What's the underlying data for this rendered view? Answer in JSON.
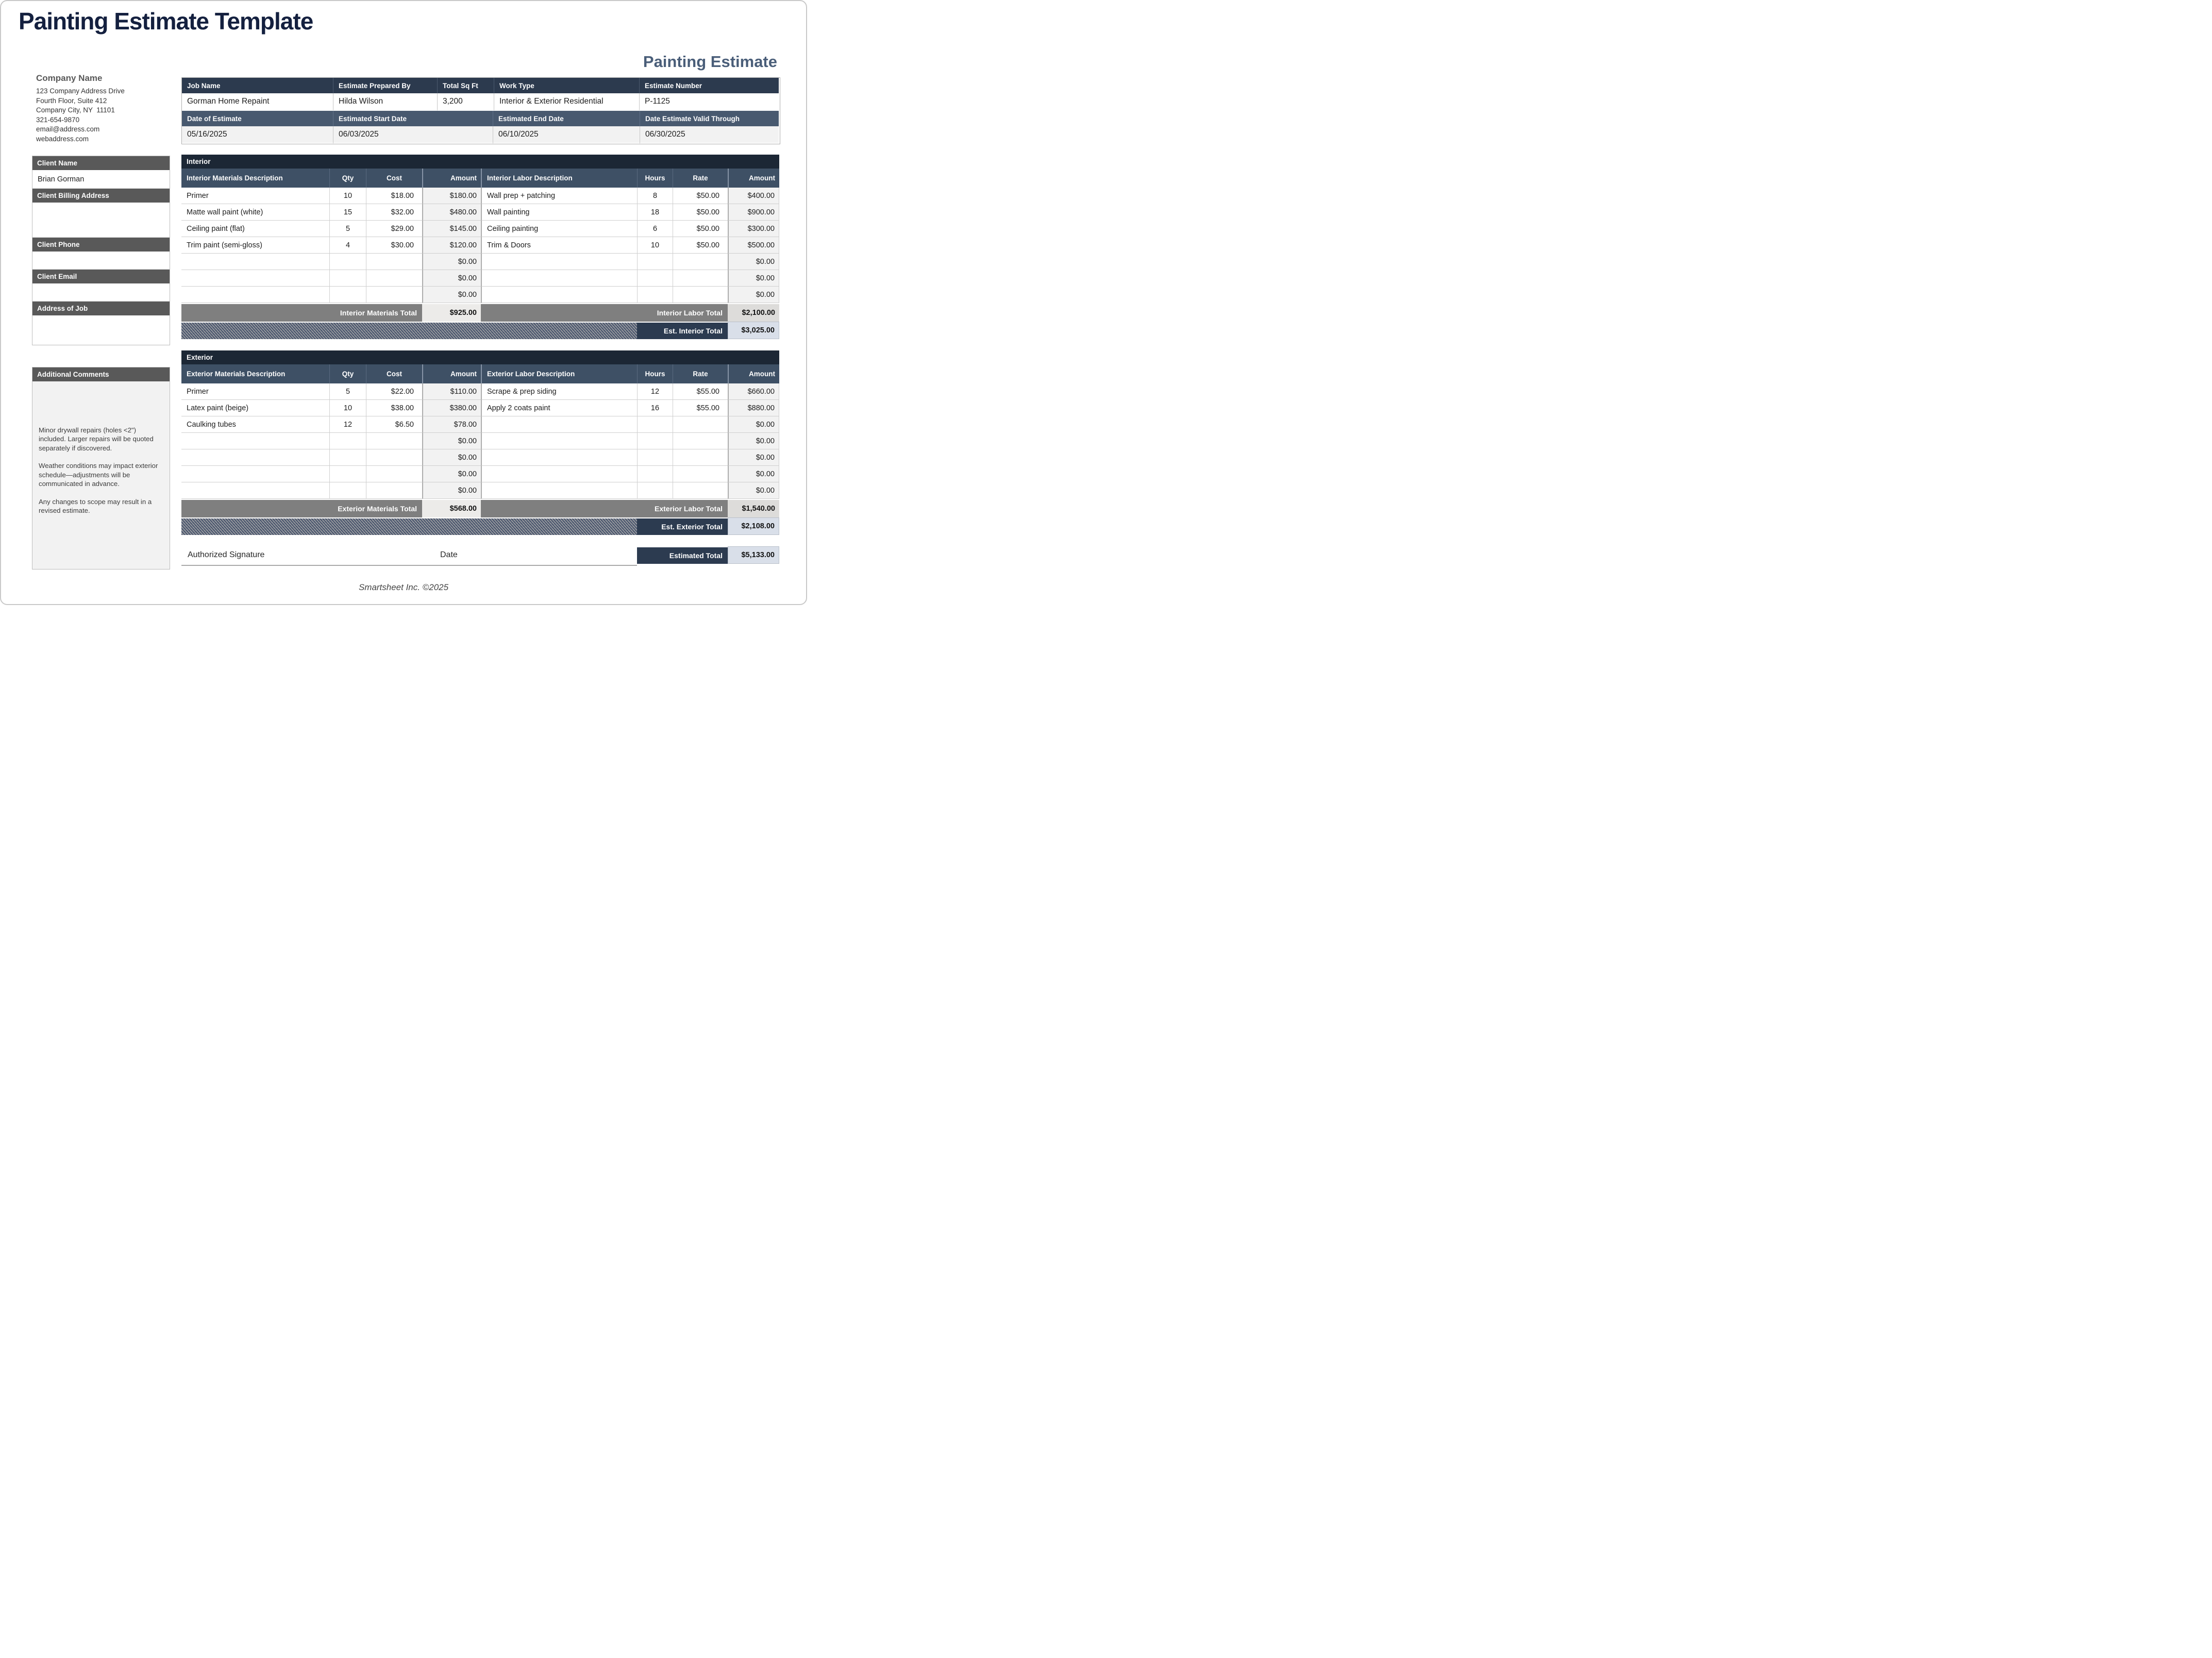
{
  "page": {
    "title": "Painting Estimate Template",
    "form_heading": "Painting Estimate",
    "footer_credit": "Smartsheet Inc. ©2025"
  },
  "colors": {
    "title_navy": "#14203f",
    "heading_slate": "#4a5e79",
    "section_bar_navy": "#1c2735",
    "column_header_slate": "#3e5065",
    "job_header_dark": "#2c3a4e",
    "job_header_slate": "#48596f",
    "sidebar_gray": "#595959",
    "totals_gray": "#7f7f7f",
    "est_total_navy": "#2c3b50",
    "light_cell_fill": "#f2f2f2",
    "est_value_fill": "#d9dfe9"
  },
  "company": {
    "name": "Company Name",
    "address_lines": [
      "123 Company Address Drive",
      "Fourth Floor, Suite 412",
      "Company City, NY  11101",
      "321-654-9870",
      "email@address.com",
      "webaddress.com"
    ]
  },
  "job_info": {
    "row1": [
      {
        "label": "Job Name",
        "value": "Gorman Home Repaint"
      },
      {
        "label": "Estimate Prepared By",
        "value": "Hilda Wilson"
      },
      {
        "label": "Total Sq Ft",
        "value": "3,200"
      },
      {
        "label": "Work Type",
        "value": "Interior & Exterior Residential"
      },
      {
        "label": "Estimate Number",
        "value": "P-1125"
      }
    ],
    "row2": [
      {
        "label": "Date of Estimate",
        "value": "05/16/2025"
      },
      {
        "label": "Estimated Start Date",
        "value": "06/03/2025"
      },
      {
        "label": "Estimated End Date",
        "value": "06/10/2025"
      },
      {
        "label": "Date Estimate Valid Through",
        "value": "06/30/2025"
      }
    ]
  },
  "client": {
    "fields": [
      {
        "label": "Client Name",
        "value": "Brian Gorman"
      },
      {
        "label": "Client Billing Address",
        "value": ""
      },
      {
        "label": "Client Phone",
        "value": ""
      },
      {
        "label": "Client Email",
        "value": ""
      },
      {
        "label": "Address of Job",
        "value": ""
      }
    ],
    "comments": {
      "label": "Additional Comments",
      "paragraphs": [
        "Minor drywall repairs (holes <2\") included. Larger repairs will be quoted separately if discovered.",
        "Weather conditions may impact exterior schedule—adjustments will be communicated in advance.",
        "Any changes to scope may result in a revised estimate."
      ]
    }
  },
  "interior": {
    "section_label": "Interior",
    "headers": {
      "materials": "Interior Materials Description",
      "qty": "Qty",
      "cost": "Cost",
      "amount": "Amount",
      "labor": "Interior Labor Description",
      "hours": "Hours",
      "rate": "Rate",
      "labor_amount": "Amount"
    },
    "rows": [
      {
        "material": "Primer",
        "qty": "10",
        "cost": "$18.00",
        "amount": "$180.00",
        "labor": "Wall prep + patching",
        "hours": "8",
        "rate": "$50.00",
        "labor_amount": "$400.00"
      },
      {
        "material": "Matte wall paint (white)",
        "qty": "15",
        "cost": "$32.00",
        "amount": "$480.00",
        "labor": "Wall painting",
        "hours": "18",
        "rate": "$50.00",
        "labor_amount": "$900.00"
      },
      {
        "material": "Ceiling paint (flat)",
        "qty": "5",
        "cost": "$29.00",
        "amount": "$145.00",
        "labor": "Ceiling painting",
        "hours": "6",
        "rate": "$50.00",
        "labor_amount": "$300.00"
      },
      {
        "material": "Trim paint (semi-gloss)",
        "qty": "4",
        "cost": "$30.00",
        "amount": "$120.00",
        "labor": "Trim & Doors",
        "hours": "10",
        "rate": "$50.00",
        "labor_amount": "$500.00"
      },
      {
        "material": "",
        "qty": "",
        "cost": "",
        "amount": "$0.00",
        "labor": "",
        "hours": "",
        "rate": "",
        "labor_amount": "$0.00"
      },
      {
        "material": "",
        "qty": "",
        "cost": "",
        "amount": "$0.00",
        "labor": "",
        "hours": "",
        "rate": "",
        "labor_amount": "$0.00"
      },
      {
        "material": "",
        "qty": "",
        "cost": "",
        "amount": "$0.00",
        "labor": "",
        "hours": "",
        "rate": "",
        "labor_amount": "$0.00"
      }
    ],
    "totals": {
      "materials_label": "Interior Materials Total",
      "materials_value": "$925.00",
      "labor_label": "Interior Labor Total",
      "labor_value": "$2,100.00",
      "est_label": "Est. Interior Total",
      "est_value": "$3,025.00"
    }
  },
  "exterior": {
    "section_label": "Exterior",
    "headers": {
      "materials": "Exterior Materials Description",
      "qty": "Qty",
      "cost": "Cost",
      "amount": "Amount",
      "labor": "Exterior Labor Description",
      "hours": "Hours",
      "rate": "Rate",
      "labor_amount": "Amount"
    },
    "rows": [
      {
        "material": "Primer",
        "qty": "5",
        "cost": "$22.00",
        "amount": "$110.00",
        "labor": "Scrape & prep siding",
        "hours": "12",
        "rate": "$55.00",
        "labor_amount": "$660.00"
      },
      {
        "material": "Latex paint (beige)",
        "qty": "10",
        "cost": "$38.00",
        "amount": "$380.00",
        "labor": "Apply 2 coats paint",
        "hours": "16",
        "rate": "$55.00",
        "labor_amount": "$880.00"
      },
      {
        "material": "Caulking tubes",
        "qty": "12",
        "cost": "$6.50",
        "amount": "$78.00",
        "labor": "",
        "hours": "",
        "rate": "",
        "labor_amount": "$0.00"
      },
      {
        "material": "",
        "qty": "",
        "cost": "",
        "amount": "$0.00",
        "labor": "",
        "hours": "",
        "rate": "",
        "labor_amount": "$0.00"
      },
      {
        "material": "",
        "qty": "",
        "cost": "",
        "amount": "$0.00",
        "labor": "",
        "hours": "",
        "rate": "",
        "labor_amount": "$0.00"
      },
      {
        "material": "",
        "qty": "",
        "cost": "",
        "amount": "$0.00",
        "labor": "",
        "hours": "",
        "rate": "",
        "labor_amount": "$0.00"
      },
      {
        "material": "",
        "qty": "",
        "cost": "",
        "amount": "$0.00",
        "labor": "",
        "hours": "",
        "rate": "",
        "labor_amount": "$0.00"
      }
    ],
    "totals": {
      "materials_label": "Exterior Materials Total",
      "materials_value": "$568.00",
      "labor_label": "Exterior Labor Total",
      "labor_value": "$1,540.00",
      "est_label": "Est. Exterior Total",
      "est_value": "$2,108.00"
    }
  },
  "signature": {
    "authorized_label": "Authorized Signature",
    "date_label": "Date"
  },
  "grand_total": {
    "label": "Estimated Total",
    "value": "$5,133.00"
  }
}
